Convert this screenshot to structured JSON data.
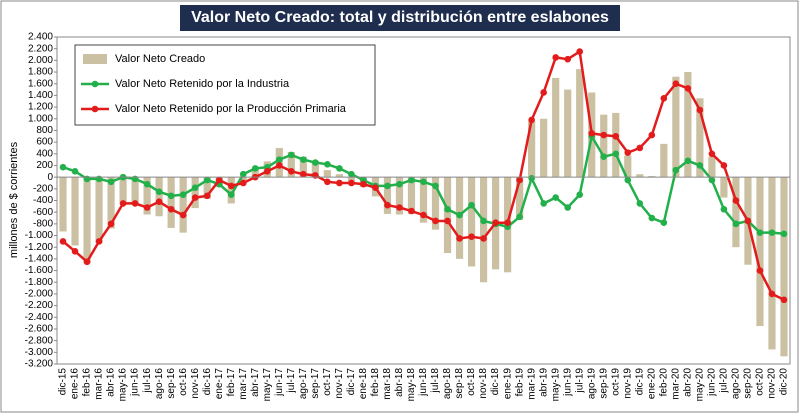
{
  "chart_data": {
    "type": "combo",
    "title": "Valor Neto Creado: total y distribución entre eslabones",
    "y_label": "millones de $ corrientes",
    "categories": [
      "dic-15",
      "ene-16",
      "feb-16",
      "mar-16",
      "abr-16",
      "may-16",
      "jun-16",
      "jul-16",
      "ago-16",
      "sep-16",
      "oct-16",
      "nov-16",
      "dic-16",
      "ene-17",
      "feb-17",
      "mar-17",
      "abr-17",
      "may-17",
      "jun-17",
      "jul-17",
      "ago-17",
      "sep-17",
      "oct-17",
      "nov-17",
      "dic-17",
      "ene-18",
      "feb-18",
      "mar-18",
      "abr-18",
      "may-18",
      "jun-18",
      "jul-18",
      "ago-18",
      "sep-18",
      "oct-18",
      "nov-18",
      "dic-18",
      "ene-19",
      "feb-19",
      "mar-19",
      "abr-19",
      "may-19",
      "jun-19",
      "jul-19",
      "ago-19",
      "sep-19",
      "oct-19",
      "nov-19",
      "dic-19",
      "ene-20",
      "feb-20",
      "mar-20",
      "abr-20",
      "may-20",
      "jun-20",
      "jul-20",
      "ago-20",
      "sep-20",
      "oct-20",
      "nov-20",
      "dic-20"
    ],
    "series": [
      {
        "name": "Valor Neto Creado",
        "type": "bar",
        "color": "#cbc1a2",
        "values": [
          -930,
          -1170,
          -1480,
          -1130,
          -880,
          -450,
          -480,
          -640,
          -670,
          -870,
          -950,
          -530,
          -370,
          -170,
          -450,
          -50,
          150,
          270,
          500,
          430,
          350,
          280,
          120,
          50,
          -70,
          -170,
          -330,
          -630,
          -640,
          -630,
          -780,
          -900,
          -1300,
          -1400,
          -1530,
          -1800,
          -1580,
          -1630,
          -730,
          960,
          1000,
          1700,
          1500,
          1850,
          1450,
          1070,
          1100,
          370,
          50,
          20,
          570,
          1720,
          1800,
          1350,
          350,
          -350,
          -1200,
          -1500,
          -2550,
          -2950,
          -3070
        ]
      },
      {
        "name": "Valor Neto Retenido por la Industria",
        "type": "line",
        "color": "#22b04b",
        "values": [
          170,
          100,
          -30,
          -30,
          -80,
          0,
          -30,
          -120,
          -250,
          -320,
          -300,
          -180,
          -50,
          -120,
          -300,
          50,
          150,
          170,
          300,
          380,
          300,
          250,
          220,
          150,
          50,
          -50,
          -150,
          -150,
          -120,
          -50,
          -80,
          -150,
          -550,
          -650,
          -480,
          -750,
          -800,
          -850,
          -680,
          -20,
          -450,
          -350,
          -520,
          -300,
          700,
          350,
          400,
          -50,
          -450,
          -700,
          -780,
          120,
          280,
          200,
          -50,
          -550,
          -800,
          -750,
          -950,
          -950,
          -970
        ]
      },
      {
        "name": "Valor Neto Retenido por la Producción Primaria",
        "type": "line",
        "color": "#e31b1b",
        "values": [
          -1100,
          -1270,
          -1450,
          -1100,
          -800,
          -450,
          -450,
          -520,
          -420,
          -550,
          -650,
          -350,
          -320,
          -50,
          -150,
          -100,
          0,
          100,
          200,
          100,
          50,
          30,
          -80,
          -100,
          -100,
          -120,
          -180,
          -480,
          -520,
          -580,
          -650,
          -750,
          -750,
          -1050,
          -1020,
          -1050,
          -780,
          -780,
          -50,
          980,
          1450,
          2050,
          2020,
          2150,
          750,
          720,
          700,
          420,
          500,
          720,
          1350,
          1600,
          1520,
          1150,
          400,
          200,
          -400,
          -750,
          -1600,
          -2000,
          -2100
        ]
      }
    ],
    "ylim": [
      -3200,
      2400
    ],
    "yticks": [
      {
        "value": -3200,
        "label": "-3.200"
      },
      {
        "value": -3000,
        "label": "-3.000"
      },
      {
        "value": -2800,
        "label": "-2.800"
      },
      {
        "value": -2600,
        "label": "-2.600"
      },
      {
        "value": -2400,
        "label": "-2.400"
      },
      {
        "value": -2200,
        "label": "-2.200"
      },
      {
        "value": -2000,
        "label": "-2.000"
      },
      {
        "value": -1800,
        "label": "-1.800"
      },
      {
        "value": -1600,
        "label": "-1.600"
      },
      {
        "value": -1400,
        "label": "-1.400"
      },
      {
        "value": -1200,
        "label": "-1.200"
      },
      {
        "value": -1000,
        "label": "-1.000"
      },
      -800,
      -600,
      -400,
      -200,
      0,
      200,
      400,
      600,
      800,
      {
        "value": 1000,
        "label": "1.000"
      },
      {
        "value": 1200,
        "label": "1.200"
      },
      {
        "value": 1400,
        "label": "1.400"
      },
      {
        "value": 1600,
        "label": "1.600"
      },
      {
        "value": 1800,
        "label": "1.800"
      },
      {
        "value": 2000,
        "label": "2.000"
      },
      {
        "value": 2200,
        "label": "2.200"
      },
      {
        "value": 2400,
        "label": "2.400"
      }
    ],
    "grid": false,
    "legend": "upper left"
  }
}
